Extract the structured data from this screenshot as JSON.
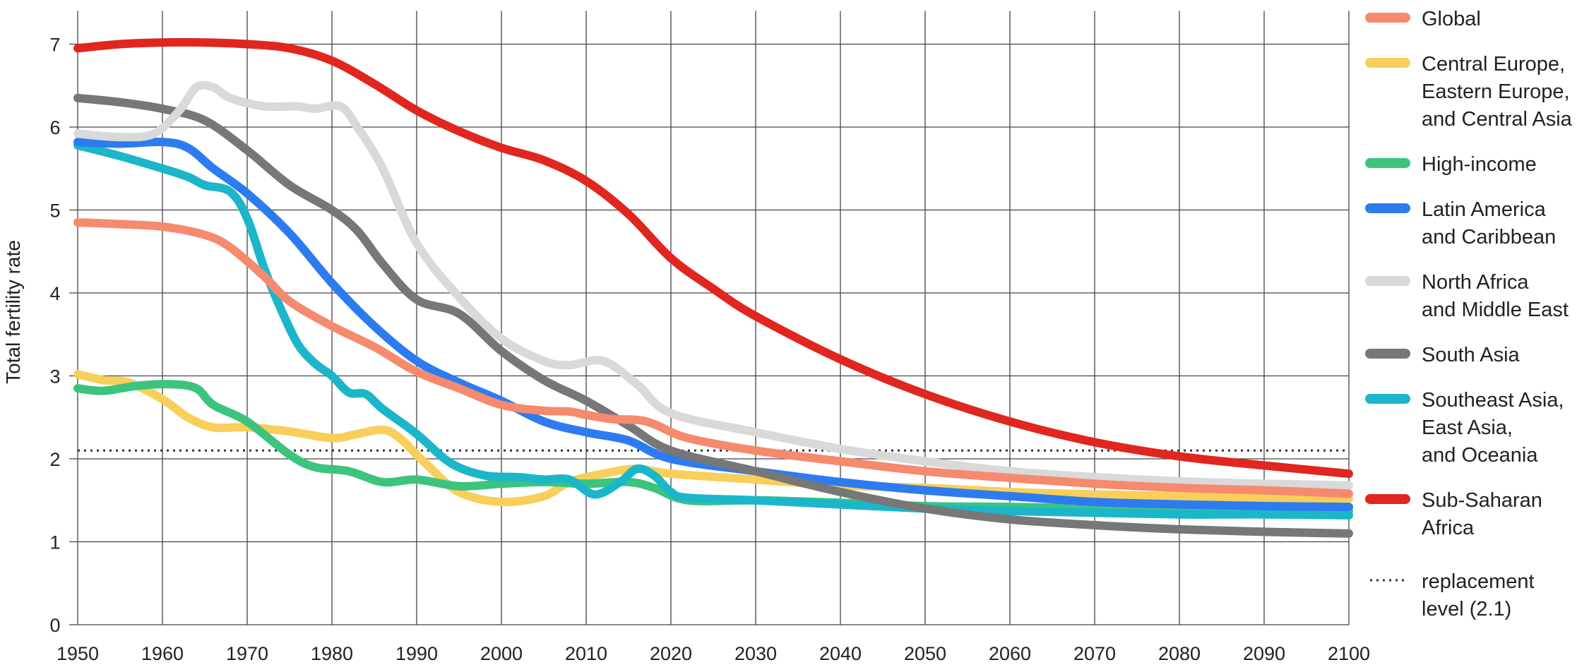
{
  "chart_data": {
    "type": "line",
    "ylabel": "Total fertility rate",
    "xlabel": "",
    "xlim": [
      1950,
      2100
    ],
    "ylim": [
      0,
      7.4
    ],
    "xticks": [
      1950,
      1960,
      1970,
      1980,
      1990,
      2000,
      2010,
      2020,
      2030,
      2040,
      2050,
      2060,
      2070,
      2080,
      2090,
      2100
    ],
    "yticks": [
      0,
      1,
      2,
      3,
      4,
      5,
      6,
      7
    ],
    "grid": true,
    "legend_position": "right",
    "series": [
      {
        "name": "Global",
        "color": "#F58A6E",
        "points": [
          [
            1950,
            4.85
          ],
          [
            1955,
            4.83
          ],
          [
            1960,
            4.8
          ],
          [
            1965,
            4.7
          ],
          [
            1968,
            4.55
          ],
          [
            1972,
            4.2
          ],
          [
            1975,
            3.9
          ],
          [
            1980,
            3.6
          ],
          [
            1985,
            3.35
          ],
          [
            1990,
            3.05
          ],
          [
            1995,
            2.85
          ],
          [
            2000,
            2.65
          ],
          [
            2005,
            2.58
          ],
          [
            2008,
            2.57
          ],
          [
            2010,
            2.53
          ],
          [
            2013,
            2.48
          ],
          [
            2016,
            2.47
          ],
          [
            2018,
            2.42
          ],
          [
            2022,
            2.25
          ],
          [
            2030,
            2.1
          ],
          [
            2040,
            1.97
          ],
          [
            2050,
            1.85
          ],
          [
            2060,
            1.77
          ],
          [
            2070,
            1.7
          ],
          [
            2080,
            1.65
          ],
          [
            2090,
            1.62
          ],
          [
            2100,
            1.58
          ]
        ]
      },
      {
        "name": "Central Europe, Eastern Europe, and Central Asia",
        "color": "#F7CF5A",
        "points": [
          [
            1950,
            3.02
          ],
          [
            1953,
            2.95
          ],
          [
            1956,
            2.92
          ],
          [
            1960,
            2.72
          ],
          [
            1963,
            2.5
          ],
          [
            1966,
            2.38
          ],
          [
            1970,
            2.38
          ],
          [
            1975,
            2.33
          ],
          [
            1980,
            2.25
          ],
          [
            1983,
            2.3
          ],
          [
            1986,
            2.35
          ],
          [
            1988,
            2.25
          ],
          [
            1991,
            1.95
          ],
          [
            1995,
            1.6
          ],
          [
            2000,
            1.48
          ],
          [
            2005,
            1.55
          ],
          [
            2008,
            1.72
          ],
          [
            2012,
            1.82
          ],
          [
            2016,
            1.88
          ],
          [
            2020,
            1.82
          ],
          [
            2030,
            1.75
          ],
          [
            2040,
            1.68
          ],
          [
            2050,
            1.65
          ],
          [
            2060,
            1.6
          ],
          [
            2070,
            1.57
          ],
          [
            2080,
            1.55
          ],
          [
            2090,
            1.53
          ],
          [
            2100,
            1.52
          ]
        ]
      },
      {
        "name": "High-income",
        "color": "#3CC47F",
        "points": [
          [
            1950,
            2.85
          ],
          [
            1953,
            2.82
          ],
          [
            1957,
            2.88
          ],
          [
            1961,
            2.9
          ],
          [
            1964,
            2.85
          ],
          [
            1966,
            2.65
          ],
          [
            1970,
            2.45
          ],
          [
            1975,
            2.05
          ],
          [
            1978,
            1.9
          ],
          [
            1982,
            1.85
          ],
          [
            1986,
            1.72
          ],
          [
            1990,
            1.75
          ],
          [
            1995,
            1.67
          ],
          [
            2000,
            1.7
          ],
          [
            2005,
            1.72
          ],
          [
            2010,
            1.7
          ],
          [
            2015,
            1.72
          ],
          [
            2018,
            1.65
          ],
          [
            2022,
            1.5
          ],
          [
            2030,
            1.5
          ],
          [
            2040,
            1.47
          ],
          [
            2050,
            1.43
          ],
          [
            2060,
            1.42
          ],
          [
            2070,
            1.4
          ],
          [
            2080,
            1.39
          ],
          [
            2090,
            1.38
          ],
          [
            2100,
            1.37
          ]
        ]
      },
      {
        "name": "Latin America and Caribbean",
        "color": "#2D7BF0",
        "points": [
          [
            1950,
            5.82
          ],
          [
            1955,
            5.8
          ],
          [
            1960,
            5.82
          ],
          [
            1963,
            5.75
          ],
          [
            1966,
            5.5
          ],
          [
            1970,
            5.2
          ],
          [
            1975,
            4.72
          ],
          [
            1980,
            4.12
          ],
          [
            1985,
            3.6
          ],
          [
            1990,
            3.18
          ],
          [
            1995,
            2.92
          ],
          [
            2000,
            2.7
          ],
          [
            2005,
            2.45
          ],
          [
            2010,
            2.32
          ],
          [
            2015,
            2.22
          ],
          [
            2020,
            2.0
          ],
          [
            2030,
            1.85
          ],
          [
            2040,
            1.72
          ],
          [
            2050,
            1.62
          ],
          [
            2060,
            1.55
          ],
          [
            2070,
            1.48
          ],
          [
            2080,
            1.45
          ],
          [
            2090,
            1.43
          ],
          [
            2100,
            1.42
          ]
        ]
      },
      {
        "name": "North Africa and Middle East",
        "color": "#D9D9D9",
        "points": [
          [
            1950,
            5.92
          ],
          [
            1955,
            5.88
          ],
          [
            1959,
            5.92
          ],
          [
            1962,
            6.2
          ],
          [
            1964,
            6.48
          ],
          [
            1966,
            6.48
          ],
          [
            1968,
            6.35
          ],
          [
            1972,
            6.25
          ],
          [
            1976,
            6.25
          ],
          [
            1978,
            6.22
          ],
          [
            1981,
            6.25
          ],
          [
            1983,
            6.0
          ],
          [
            1986,
            5.5
          ],
          [
            1990,
            4.6
          ],
          [
            1995,
            3.95
          ],
          [
            2000,
            3.45
          ],
          [
            2005,
            3.18
          ],
          [
            2008,
            3.13
          ],
          [
            2012,
            3.18
          ],
          [
            2016,
            2.9
          ],
          [
            2020,
            2.55
          ],
          [
            2030,
            2.32
          ],
          [
            2040,
            2.12
          ],
          [
            2050,
            1.97
          ],
          [
            2060,
            1.85
          ],
          [
            2070,
            1.78
          ],
          [
            2080,
            1.73
          ],
          [
            2090,
            1.7
          ],
          [
            2100,
            1.68
          ]
        ]
      },
      {
        "name": "South Asia",
        "color": "#777777",
        "points": [
          [
            1950,
            6.35
          ],
          [
            1955,
            6.3
          ],
          [
            1960,
            6.22
          ],
          [
            1965,
            6.08
          ],
          [
            1970,
            5.72
          ],
          [
            1975,
            5.3
          ],
          [
            1980,
            5.0
          ],
          [
            1983,
            4.75
          ],
          [
            1986,
            4.35
          ],
          [
            1990,
            3.92
          ],
          [
            1995,
            3.75
          ],
          [
            2000,
            3.3
          ],
          [
            2005,
            2.95
          ],
          [
            2010,
            2.7
          ],
          [
            2015,
            2.4
          ],
          [
            2020,
            2.1
          ],
          [
            2030,
            1.85
          ],
          [
            2040,
            1.6
          ],
          [
            2050,
            1.4
          ],
          [
            2060,
            1.27
          ],
          [
            2070,
            1.2
          ],
          [
            2080,
            1.15
          ],
          [
            2090,
            1.12
          ],
          [
            2100,
            1.1
          ]
        ]
      },
      {
        "name": "Southeast Asia, East Asia, and Oceania",
        "color": "#1BB6C9",
        "points": [
          [
            1950,
            5.78
          ],
          [
            1955,
            5.65
          ],
          [
            1960,
            5.5
          ],
          [
            1963,
            5.4
          ],
          [
            1965,
            5.3
          ],
          [
            1968,
            5.22
          ],
          [
            1970,
            4.9
          ],
          [
            1972,
            4.3
          ],
          [
            1974,
            3.8
          ],
          [
            1976,
            3.38
          ],
          [
            1978,
            3.15
          ],
          [
            1980,
            3.0
          ],
          [
            1982,
            2.8
          ],
          [
            1984,
            2.78
          ],
          [
            1986,
            2.6
          ],
          [
            1990,
            2.3
          ],
          [
            1994,
            1.95
          ],
          [
            1998,
            1.8
          ],
          [
            2002,
            1.78
          ],
          [
            2005,
            1.75
          ],
          [
            2008,
            1.75
          ],
          [
            2011,
            1.57
          ],
          [
            2014,
            1.72
          ],
          [
            2016,
            1.88
          ],
          [
            2018,
            1.8
          ],
          [
            2020,
            1.6
          ],
          [
            2022,
            1.53
          ],
          [
            2030,
            1.5
          ],
          [
            2040,
            1.45
          ],
          [
            2050,
            1.4
          ],
          [
            2060,
            1.37
          ],
          [
            2070,
            1.35
          ],
          [
            2080,
            1.33
          ],
          [
            2090,
            1.33
          ],
          [
            2100,
            1.32
          ]
        ]
      },
      {
        "name": "Sub-Saharan Africa",
        "color": "#E0261F",
        "points": [
          [
            1950,
            6.95
          ],
          [
            1955,
            7.0
          ],
          [
            1960,
            7.02
          ],
          [
            1965,
            7.02
          ],
          [
            1970,
            7.0
          ],
          [
            1975,
            6.95
          ],
          [
            1980,
            6.8
          ],
          [
            1985,
            6.52
          ],
          [
            1990,
            6.2
          ],
          [
            1995,
            5.95
          ],
          [
            2000,
            5.75
          ],
          [
            2005,
            5.6
          ],
          [
            2010,
            5.35
          ],
          [
            2015,
            4.95
          ],
          [
            2020,
            4.42
          ],
          [
            2025,
            4.05
          ],
          [
            2030,
            3.72
          ],
          [
            2040,
            3.2
          ],
          [
            2050,
            2.78
          ],
          [
            2060,
            2.45
          ],
          [
            2070,
            2.2
          ],
          [
            2080,
            2.03
          ],
          [
            2090,
            1.92
          ],
          [
            2100,
            1.82
          ]
        ]
      }
    ],
    "reference_line": {
      "label": "replacement level (2.1)",
      "value": 2.1,
      "style": "dotted",
      "color": "#333333"
    }
  },
  "legend": {
    "items": [
      {
        "lines": [
          "Global"
        ],
        "color": "#F58A6E"
      },
      {
        "lines": [
          "Central Europe,",
          "Eastern Europe,",
          "and Central Asia"
        ],
        "color": "#F7CF5A"
      },
      {
        "lines": [
          "High-income"
        ],
        "color": "#3CC47F"
      },
      {
        "lines": [
          "Latin America",
          "and Caribbean"
        ],
        "color": "#2D7BF0"
      },
      {
        "lines": [
          "North Africa",
          "and Middle East"
        ],
        "color": "#D9D9D9"
      },
      {
        "lines": [
          "South Asia"
        ],
        "color": "#777777"
      },
      {
        "lines": [
          "Southeast Asia,",
          "East Asia,",
          "and Oceania"
        ],
        "color": "#1BB6C9"
      },
      {
        "lines": [
          "Sub-Saharan",
          "Africa"
        ],
        "color": "#E0261F"
      }
    ],
    "reference": {
      "lines": [
        "replacement",
        "level (2.1)"
      ]
    }
  }
}
